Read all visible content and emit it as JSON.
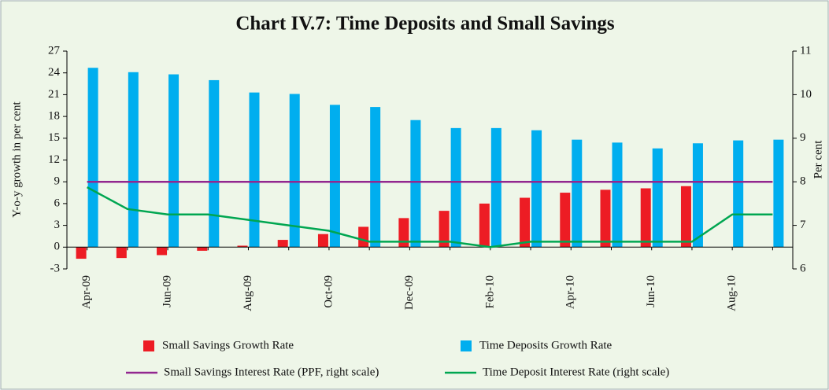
{
  "chart_data": {
    "type": "bar_line",
    "title": "Chart IV.7: Time Deposits and Small Savings",
    "y_label": "Y-o-y growth in per cent",
    "y2_label": "Per cent",
    "categories": [
      "Apr-09",
      null,
      "Jun-09",
      null,
      "Aug-09",
      null,
      "Oct-09",
      null,
      "Dec-09",
      null,
      "Feb-10",
      null,
      "Apr-10",
      null,
      "Jun-10",
      null,
      "Aug-10",
      null
    ],
    "ylim": [
      -3,
      27
    ],
    "yticks": [
      -3,
      0,
      3,
      6,
      9,
      12,
      15,
      18,
      21,
      24,
      27
    ],
    "y2lim": [
      6,
      11
    ],
    "y2ticks": [
      6,
      7,
      8,
      9,
      10,
      11
    ],
    "series": [
      {
        "name": "Small Savings Growth Rate",
        "type": "bar",
        "color": "#ed1c24",
        "values": [
          -1.6,
          -1.5,
          -1.1,
          -0.5,
          0.2,
          1.0,
          1.8,
          2.8,
          4.0,
          5.0,
          6.0,
          6.8,
          7.5,
          7.9,
          8.1,
          8.4,
          null,
          null
        ]
      },
      {
        "name": "Time Deposits Growth Rate",
        "type": "bar",
        "color": "#00aeef",
        "values": [
          24.7,
          24.1,
          23.8,
          23.0,
          21.3,
          21.1,
          19.6,
          19.3,
          17.5,
          16.4,
          16.4,
          16.1,
          14.8,
          14.4,
          13.6,
          14.3,
          14.7,
          14.8
        ]
      },
      {
        "name": "Small Savings Interest Rate (PPF, right scale)",
        "type": "line",
        "axis": "y2",
        "color": "#92278f",
        "values": [
          8,
          8,
          8,
          8,
          8,
          8,
          8,
          8,
          8,
          8,
          8,
          8,
          8,
          8,
          8,
          8,
          8,
          8
        ]
      },
      {
        "name": "Time Deposit Interest Rate (right scale)",
        "type": "line",
        "axis": "y2",
        "color": "#00a651",
        "values": [
          7.875,
          7.375,
          7.25,
          7.25,
          7.125,
          7.0,
          6.875,
          6.625,
          6.625,
          6.625,
          6.5,
          6.625,
          6.625,
          6.625,
          6.625,
          6.625,
          7.25,
          7.25
        ]
      }
    ]
  }
}
